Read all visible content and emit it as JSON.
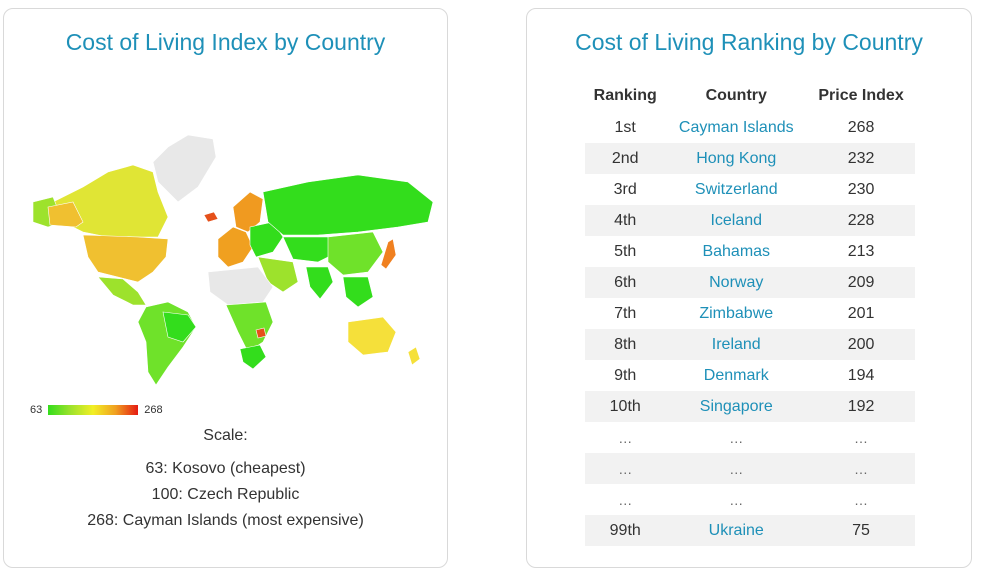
{
  "left": {
    "title": "Cost of Living Index by Country",
    "scale_min": "63",
    "scale_max": "268",
    "scale_label": "Scale:",
    "scale_lines": [
      "63: Kosovo (cheapest)",
      "100: Czech Republic",
      "268: Cayman Islands (most expensive)"
    ],
    "colors": {
      "low": "#33dd1c",
      "mid": "#f2ef25",
      "high": "#e51a12",
      "no_data": "#e8e8e8"
    }
  },
  "right": {
    "title": "Cost of Living Ranking by Country",
    "headers": [
      "Ranking",
      "Country",
      "Price Index"
    ],
    "rows": [
      {
        "rank": "1st",
        "country": "Cayman Islands",
        "index": "268"
      },
      {
        "rank": "2nd",
        "country": "Hong Kong",
        "index": "232"
      },
      {
        "rank": "3rd",
        "country": "Switzerland",
        "index": "230"
      },
      {
        "rank": "4th",
        "country": "Iceland",
        "index": "228"
      },
      {
        "rank": "5th",
        "country": "Bahamas",
        "index": "213"
      },
      {
        "rank": "6th",
        "country": "Norway",
        "index": "209"
      },
      {
        "rank": "7th",
        "country": "Zimbabwe",
        "index": "201"
      },
      {
        "rank": "8th",
        "country": "Ireland",
        "index": "200"
      },
      {
        "rank": "9th",
        "country": "Denmark",
        "index": "194"
      },
      {
        "rank": "10th",
        "country": "Singapore",
        "index": "192"
      },
      {
        "rank": "…",
        "country": "…",
        "index": "…"
      },
      {
        "rank": "…",
        "country": "…",
        "index": "…"
      },
      {
        "rank": "…",
        "country": "…",
        "index": "…"
      },
      {
        "rank": "99th",
        "country": "Ukraine",
        "index": "75"
      }
    ]
  }
}
